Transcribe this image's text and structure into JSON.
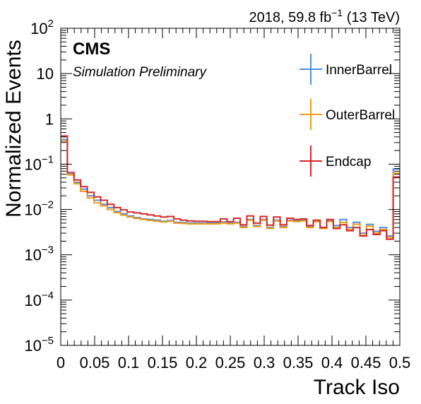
{
  "header": {
    "lumi_prefix": "2018, 59.8 fb",
    "lumi_exp": "−1",
    "lumi_suffix": " (13 TeV)",
    "cms": "CMS",
    "prelim": "Simulation Preliminary"
  },
  "chart_data": {
    "type": "line",
    "style": "step-histogram",
    "title": "",
    "xlabel": "Track Iso",
    "ylabel": "Normalized Events",
    "xlim": [
      0,
      0.5
    ],
    "ylim": [
      1e-05,
      100
    ],
    "yscale": "log",
    "grid": false,
    "legend_position": "top-right",
    "x_ticks": [
      "0",
      "0.05",
      "0.1",
      "0.15",
      "0.2",
      "0.25",
      "0.3",
      "0.35",
      "0.4",
      "0.45",
      "0.5"
    ],
    "y_ticks": [
      {
        "base": "10",
        "exp": "−5",
        "value": 1e-05
      },
      {
        "base": "10",
        "exp": "−4",
        "value": 0.0001
      },
      {
        "base": "10",
        "exp": "−3",
        "value": 0.001
      },
      {
        "base": "10",
        "exp": "−2",
        "value": 0.01
      },
      {
        "base": "10",
        "exp": "−1",
        "value": 0.1
      },
      {
        "base": "1",
        "exp": "",
        "value": 1
      },
      {
        "base": "10",
        "exp": "",
        "value": 10
      },
      {
        "base": "10",
        "exp": "2",
        "value": 100
      }
    ],
    "bin_width": 0.01,
    "series": [
      {
        "name": "InnerBarrel",
        "color": "#4a90e2",
        "values": [
          0.35,
          0.06,
          0.04,
          0.028,
          0.02,
          0.016,
          0.013,
          0.011,
          0.009,
          0.008,
          0.0072,
          0.0066,
          0.0062,
          0.006,
          0.0058,
          0.0055,
          0.0057,
          0.0052,
          0.0051,
          0.005,
          0.005,
          0.005,
          0.005,
          0.005,
          0.0053,
          0.005,
          0.0052,
          0.0042,
          0.006,
          0.0044,
          0.006,
          0.004,
          0.0058,
          0.0042,
          0.0058,
          0.0056,
          0.0058,
          0.0042,
          0.0056,
          0.004,
          0.0056,
          0.0044,
          0.006,
          0.004,
          0.0052,
          0.003,
          0.0047,
          0.0033,
          0.004,
          0.0026,
          0.078
        ]
      },
      {
        "name": "OuterBarrel",
        "color": "#f39c12",
        "values": [
          0.32,
          0.058,
          0.037,
          0.025,
          0.018,
          0.014,
          0.012,
          0.01,
          0.0085,
          0.0075,
          0.0068,
          0.0063,
          0.006,
          0.0057,
          0.0055,
          0.0053,
          0.0055,
          0.005,
          0.0049,
          0.0048,
          0.0048,
          0.0048,
          0.0048,
          0.0048,
          0.005,
          0.0048,
          0.005,
          0.004,
          0.0058,
          0.0042,
          0.0058,
          0.0038,
          0.0056,
          0.004,
          0.0056,
          0.0054,
          0.0056,
          0.004,
          0.0054,
          0.0038,
          0.0054,
          0.004,
          0.0052,
          0.0036,
          0.0047,
          0.0027,
          0.0043,
          0.003,
          0.0036,
          0.0024,
          0.063
        ]
      },
      {
        "name": "Endcap",
        "color": "#d62728",
        "values": [
          0.42,
          0.065,
          0.045,
          0.032,
          0.024,
          0.019,
          0.016,
          0.013,
          0.011,
          0.0098,
          0.0088,
          0.0084,
          0.008,
          0.0076,
          0.0072,
          0.0068,
          0.007,
          0.0062,
          0.0058,
          0.0056,
          0.0055,
          0.0055,
          0.0054,
          0.0054,
          0.0062,
          0.0054,
          0.0064,
          0.0046,
          0.0072,
          0.005,
          0.007,
          0.0045,
          0.0068,
          0.0046,
          0.0064,
          0.006,
          0.0062,
          0.0044,
          0.0058,
          0.004,
          0.006,
          0.0038,
          0.0046,
          0.0034,
          0.004,
          0.0026,
          0.0036,
          0.0028,
          0.0034,
          0.0022,
          0.052
        ]
      }
    ]
  }
}
